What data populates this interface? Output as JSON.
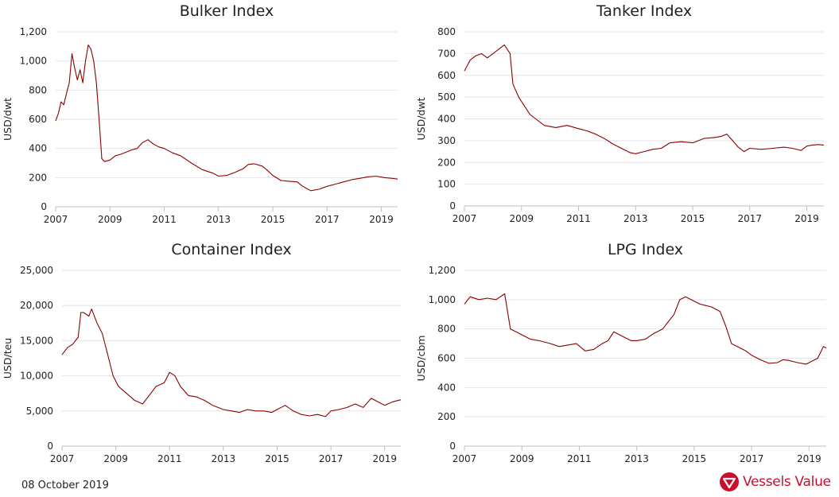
{
  "colors": {
    "series": "#8b0000",
    "brand": "#c8102e",
    "grid": "#e4e4e4",
    "text": "#222222"
  },
  "footer": {
    "date": "08 October 2019",
    "brand_name": "Vessels Value",
    "brand_icon": "vessels-value-logo-icon"
  },
  "chart_data": [
    {
      "type": "line",
      "title": "Bulker Index",
      "ylabel": "USD/dwt",
      "xlim": [
        2007,
        2019.6
      ],
      "ylim": [
        0,
        1200
      ],
      "grid": true,
      "legend": "none",
      "xticks": [
        "2007",
        "2009",
        "2011",
        "2013",
        "2015",
        "2017",
        "2019"
      ],
      "yticks": [
        "0",
        "200",
        "400",
        "600",
        "800",
        "1,000",
        "1,200"
      ],
      "series": [
        {
          "x": [
            2007.0,
            2007.1,
            2007.2,
            2007.3,
            2007.4,
            2007.5,
            2007.6,
            2007.7,
            2007.8,
            2007.9,
            2008.0,
            2008.1,
            2008.2,
            2008.3,
            2008.4,
            2008.5,
            2008.6,
            2008.7,
            2008.8,
            2009.0,
            2009.2,
            2009.4,
            2009.6,
            2009.8,
            2010.0,
            2010.2,
            2010.4,
            2010.6,
            2010.8,
            2011.0,
            2011.3,
            2011.6,
            2012.0,
            2012.4,
            2012.8,
            2013.0,
            2013.3,
            2013.6,
            2013.9,
            2014.1,
            2014.3,
            2014.6,
            2014.8,
            2015.0,
            2015.3,
            2015.6,
            2015.9,
            2016.1,
            2016.4,
            2016.7,
            2017.0,
            2017.3,
            2017.6,
            2017.9,
            2018.2,
            2018.5,
            2018.8,
            2019.1,
            2019.4,
            2019.6
          ],
          "y": [
            590,
            640,
            720,
            700,
            780,
            850,
            1050,
            950,
            870,
            940,
            850,
            1000,
            1110,
            1080,
            1000,
            850,
            600,
            330,
            310,
            320,
            350,
            360,
            375,
            390,
            400,
            440,
            460,
            430,
            410,
            400,
            370,
            350,
            300,
            255,
            230,
            210,
            215,
            235,
            260,
            290,
            295,
            280,
            250,
            215,
            180,
            175,
            170,
            140,
            110,
            120,
            140,
            155,
            170,
            185,
            195,
            205,
            210,
            200,
            195,
            190
          ]
        }
      ]
    },
    {
      "type": "line",
      "title": "Tanker Index",
      "ylabel": "USD/dwt",
      "xlim": [
        2007,
        2019.6
      ],
      "ylim": [
        0,
        800
      ],
      "grid": true,
      "legend": "none",
      "xticks": [
        "2007",
        "2009",
        "2011",
        "2013",
        "2015",
        "2017",
        "2019"
      ],
      "yticks": [
        "0",
        "100",
        "200",
        "300",
        "400",
        "500",
        "600",
        "700",
        "800"
      ],
      "series": [
        {
          "x": [
            2007.0,
            2007.2,
            2007.4,
            2007.6,
            2007.8,
            2008.0,
            2008.2,
            2008.4,
            2008.6,
            2008.7,
            2008.9,
            2009.1,
            2009.3,
            2009.5,
            2009.8,
            2010.2,
            2010.6,
            2011.0,
            2011.3,
            2011.6,
            2011.9,
            2012.2,
            2012.5,
            2012.8,
            2013.0,
            2013.3,
            2013.6,
            2013.9,
            2014.2,
            2014.6,
            2015.0,
            2015.4,
            2015.8,
            2016.0,
            2016.2,
            2016.4,
            2016.6,
            2016.8,
            2017.0,
            2017.4,
            2017.8,
            2018.2,
            2018.5,
            2018.8,
            2019.0,
            2019.2,
            2019.4,
            2019.6
          ],
          "y": [
            620,
            670,
            690,
            700,
            680,
            700,
            720,
            740,
            700,
            560,
            500,
            460,
            420,
            400,
            370,
            360,
            370,
            355,
            345,
            330,
            310,
            285,
            265,
            245,
            240,
            250,
            260,
            265,
            290,
            295,
            290,
            310,
            315,
            320,
            330,
            300,
            270,
            250,
            265,
            260,
            265,
            270,
            265,
            255,
            275,
            280,
            282,
            280
          ]
        }
      ]
    },
    {
      "type": "line",
      "title": "Container Index",
      "ylabel": "USD/teu",
      "xlim": [
        2007,
        2019.6
      ],
      "ylim": [
        0,
        25000
      ],
      "grid": true,
      "legend": "none",
      "xticks": [
        "2007",
        "2009",
        "2011",
        "2013",
        "2015",
        "2017",
        "2019"
      ],
      "yticks": [
        "0",
        "5,000",
        "10,000",
        "15,000",
        "20,000",
        "25,000"
      ],
      "series": [
        {
          "x": [
            2007.0,
            2007.2,
            2007.4,
            2007.6,
            2007.7,
            2007.8,
            2008.0,
            2008.1,
            2008.3,
            2008.5,
            2008.7,
            2008.9,
            2009.1,
            2009.4,
            2009.7,
            2010.0,
            2010.2,
            2010.5,
            2010.8,
            2011.0,
            2011.2,
            2011.4,
            2011.7,
            2012.0,
            2012.3,
            2012.6,
            2013.0,
            2013.3,
            2013.6,
            2013.9,
            2014.2,
            2014.5,
            2014.8,
            2015.0,
            2015.3,
            2015.6,
            2015.9,
            2016.2,
            2016.5,
            2016.8,
            2017.0,
            2017.3,
            2017.6,
            2017.9,
            2018.2,
            2018.5,
            2018.8,
            2019.0,
            2019.3,
            2019.6
          ],
          "y": [
            13000,
            14000,
            14500,
            15500,
            19000,
            19000,
            18500,
            19500,
            17500,
            16000,
            13000,
            10000,
            8500,
            7500,
            6500,
            6000,
            7000,
            8500,
            9000,
            10500,
            10000,
            8500,
            7200,
            7000,
            6500,
            5800,
            5200,
            5000,
            4800,
            5200,
            5000,
            5000,
            4800,
            5200,
            5800,
            5000,
            4500,
            4300,
            4500,
            4200,
            5000,
            5200,
            5500,
            6000,
            5500,
            6800,
            6200,
            5800,
            6300,
            6600
          ]
        }
      ]
    },
    {
      "type": "line",
      "title": "LPG Index",
      "ylabel": "USD/cbm",
      "xlim": [
        2007,
        2019.6
      ],
      "ylim": [
        0,
        1200
      ],
      "grid": true,
      "legend": "none",
      "xticks": [
        "2007",
        "2009",
        "2011",
        "2013",
        "2015",
        "2017",
        "2019"
      ],
      "yticks": [
        "0",
        "200",
        "400",
        "600",
        "800",
        "1,000",
        "1,200"
      ],
      "series": [
        {
          "x": [
            2007.0,
            2007.2,
            2007.5,
            2007.8,
            2008.1,
            2008.4,
            2008.6,
            2008.8,
            2009.0,
            2009.3,
            2009.6,
            2010.0,
            2010.3,
            2010.6,
            2010.9,
            2011.2,
            2011.5,
            2011.8,
            2012.0,
            2012.2,
            2012.4,
            2012.6,
            2012.8,
            2013.0,
            2013.3,
            2013.6,
            2013.9,
            2014.1,
            2014.3,
            2014.5,
            2014.7,
            2015.0,
            2015.2,
            2015.4,
            2015.6,
            2015.9,
            2016.1,
            2016.3,
            2016.5,
            2016.8,
            2017.0,
            2017.3,
            2017.6,
            2017.9,
            2018.1,
            2018.3,
            2018.6,
            2018.9,
            2019.1,
            2019.3,
            2019.5,
            2019.6
          ],
          "y": [
            970,
            1020,
            1000,
            1010,
            1000,
            1040,
            800,
            780,
            760,
            730,
            720,
            700,
            680,
            690,
            700,
            650,
            660,
            700,
            720,
            780,
            760,
            740,
            720,
            720,
            730,
            770,
            800,
            850,
            900,
            1000,
            1020,
            990,
            970,
            960,
            950,
            920,
            820,
            700,
            680,
            650,
            620,
            590,
            565,
            570,
            590,
            585,
            570,
            560,
            580,
            600,
            680,
            670
          ]
        }
      ]
    }
  ]
}
